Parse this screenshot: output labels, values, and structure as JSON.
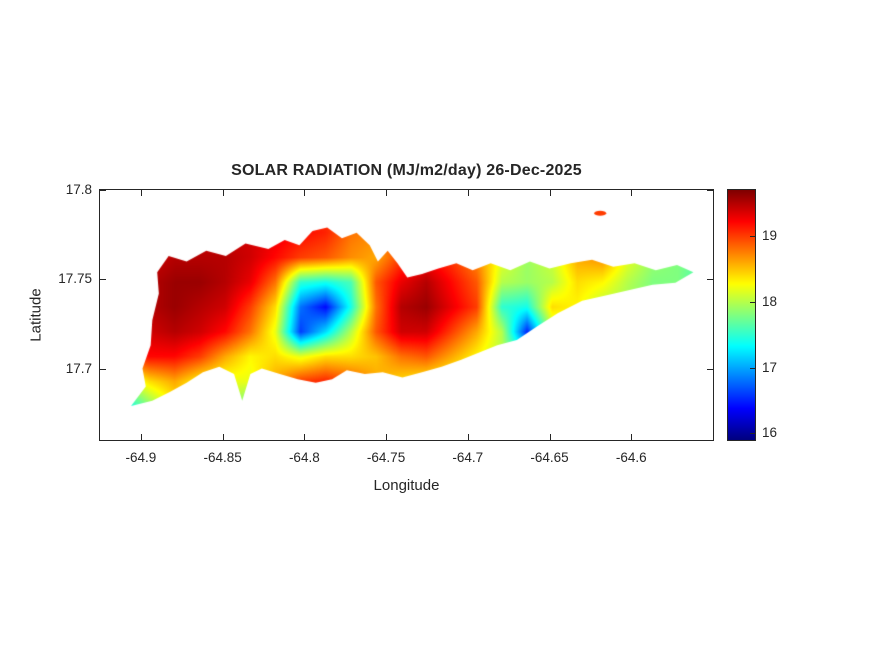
{
  "chart_data": {
    "type": "heatmap",
    "title": "SOLAR RADIATION (MJ/m2/day) 26-Dec-2025",
    "xlabel": "Longitude",
    "ylabel": "Latitude",
    "xlim": [
      -64.925,
      -64.55
    ],
    "ylim": [
      17.66,
      17.8
    ],
    "x_tick_labels": [
      "-64.9",
      "-64.85",
      "-64.8",
      "-64.75",
      "-64.7",
      "-64.65",
      "-64.6"
    ],
    "y_tick_labels": [
      "17.8",
      "17.75",
      "17.7"
    ],
    "grid_on": false,
    "colorbar": {
      "position": "right",
      "colormap": "jet",
      "clim": [
        15.9,
        19.7
      ],
      "ticks": [
        "19",
        "18",
        "17",
        "16"
      ]
    },
    "grid": {
      "lon_min": -64.91,
      "lon_max": -64.556,
      "lat_top": 17.79,
      "lat_bottom": 17.665,
      "cols": 24,
      "rows": 10,
      "values": [
        [
          19.0,
          19.2,
          19.3,
          19.3,
          19.3,
          19.3,
          19.2,
          19.1,
          19.0,
          18.8,
          18.7,
          18.8,
          18.9,
          18.8,
          18.6,
          18.4,
          18.2,
          18.3,
          18.5,
          18.7,
          18.3,
          18.0,
          17.9,
          17.8
        ],
        [
          19.1,
          19.3,
          19.4,
          19.4,
          19.4,
          19.4,
          19.3,
          19.2,
          19.1,
          18.8,
          18.7,
          18.9,
          19.1,
          18.9,
          18.6,
          18.3,
          18.1,
          18.2,
          18.6,
          18.8,
          18.2,
          18.0,
          17.9,
          17.8
        ],
        [
          19.2,
          19.4,
          19.5,
          19.5,
          19.5,
          19.4,
          19.2,
          19.0,
          18.9,
          18.7,
          18.6,
          19.0,
          19.2,
          19.0,
          18.7,
          18.2,
          17.9,
          18.1,
          18.6,
          18.7,
          18.2,
          17.9,
          17.8,
          17.7
        ],
        [
          19.3,
          19.5,
          19.6,
          19.6,
          19.5,
          19.3,
          18.8,
          17.5,
          17.4,
          17.6,
          18.9,
          19.3,
          19.5,
          19.2,
          18.9,
          18.0,
          17.9,
          18.0,
          18.4,
          18.3,
          18.0,
          17.8,
          17.8,
          17.5
        ],
        [
          19.3,
          19.5,
          19.6,
          19.5,
          19.4,
          19.0,
          18.4,
          16.8,
          16.4,
          17.4,
          18.8,
          19.5,
          19.6,
          19.3,
          19.0,
          17.5,
          17.4,
          18.4,
          18.3,
          18.0,
          17.9,
          17.8,
          17.9,
          17.9
        ],
        [
          19.2,
          19.4,
          19.5,
          19.4,
          19.2,
          18.8,
          18.2,
          16.6,
          17.2,
          18.0,
          18.9,
          19.4,
          19.4,
          19.0,
          18.6,
          18.0,
          16.5,
          18.0,
          18.2,
          17.9,
          17.8,
          17.9,
          18.0,
          18.0
        ],
        [
          19.0,
          19.2,
          19.2,
          19.0,
          18.6,
          18.3,
          18.4,
          18.2,
          18.4,
          18.4,
          18.5,
          18.8,
          18.9,
          18.6,
          18.3,
          18.0,
          17.6,
          18.1,
          18.0,
          17.8,
          17.9,
          18.0,
          18.1,
          18.1
        ],
        [
          18.0,
          18.4,
          18.6,
          18.3,
          18.2,
          18.2,
          18.6,
          19.0,
          19.1,
          18.9,
          18.6,
          18.4,
          18.3,
          18.2,
          18.1,
          18.0,
          17.9,
          18.0,
          17.9,
          17.9,
          18.0,
          18.1,
          18.1,
          18.1
        ],
        [
          17.3,
          17.8,
          18.3,
          18.2,
          18.1,
          17.6,
          18.5,
          18.8,
          18.9,
          18.8,
          18.5,
          18.2,
          18.1,
          18.0,
          18.0,
          18.0,
          17.9,
          17.9,
          17.9,
          17.9,
          18.0,
          18.0,
          18.0,
          18.0
        ],
        [
          17.2,
          17.7,
          18.1,
          18.1,
          18.0,
          17.8,
          18.3,
          18.5,
          18.6,
          18.5,
          18.3,
          18.1,
          18.0,
          18.0,
          17.9,
          17.9,
          17.9,
          17.9,
          17.9,
          17.9,
          17.9,
          17.9,
          17.9,
          17.9
        ]
      ]
    },
    "island_outline": [
      [
        -64.906,
        17.679
      ],
      [
        -64.897,
        17.69
      ],
      [
        -64.899,
        17.7
      ],
      [
        -64.894,
        17.713
      ],
      [
        -64.893,
        17.727
      ],
      [
        -64.889,
        17.742
      ],
      [
        -64.89,
        17.754
      ],
      [
        -64.883,
        17.763
      ],
      [
        -64.872,
        17.76
      ],
      [
        -64.86,
        17.766
      ],
      [
        -64.848,
        17.763
      ],
      [
        -64.836,
        17.77
      ],
      [
        -64.822,
        17.767
      ],
      [
        -64.812,
        17.772
      ],
      [
        -64.803,
        17.769
      ],
      [
        -64.795,
        17.777
      ],
      [
        -64.786,
        17.779
      ],
      [
        -64.777,
        17.773
      ],
      [
        -64.768,
        17.776
      ],
      [
        -64.76,
        17.769
      ],
      [
        -64.755,
        17.76
      ],
      [
        -64.749,
        17.766
      ],
      [
        -64.743,
        17.759
      ],
      [
        -64.737,
        17.751
      ],
      [
        -64.728,
        17.753
      ],
      [
        -64.718,
        17.756
      ],
      [
        -64.707,
        17.759
      ],
      [
        -64.697,
        17.755
      ],
      [
        -64.686,
        17.759
      ],
      [
        -64.674,
        17.755
      ],
      [
        -64.662,
        17.76
      ],
      [
        -64.65,
        17.756
      ],
      [
        -64.637,
        17.759
      ],
      [
        -64.624,
        17.761
      ],
      [
        -64.611,
        17.757
      ],
      [
        -64.598,
        17.759
      ],
      [
        -64.585,
        17.755
      ],
      [
        -64.572,
        17.758
      ],
      [
        -64.562,
        17.754
      ],
      [
        -64.573,
        17.748
      ],
      [
        -64.587,
        17.747
      ],
      [
        -64.601,
        17.744
      ],
      [
        -64.615,
        17.741
      ],
      [
        -64.63,
        17.738
      ],
      [
        -64.645,
        17.731
      ],
      [
        -64.657,
        17.724
      ],
      [
        -64.67,
        17.716
      ],
      [
        -64.682,
        17.713
      ],
      [
        -64.693,
        17.709
      ],
      [
        -64.704,
        17.705
      ],
      [
        -64.716,
        17.701
      ],
      [
        -64.728,
        17.698
      ],
      [
        -64.74,
        17.695
      ],
      [
        -64.752,
        17.698
      ],
      [
        -64.763,
        17.697
      ],
      [
        -64.774,
        17.699
      ],
      [
        -64.783,
        17.694
      ],
      [
        -64.793,
        17.692
      ],
      [
        -64.804,
        17.694
      ],
      [
        -64.815,
        17.697
      ],
      [
        -64.826,
        17.7
      ],
      [
        -64.833,
        17.697
      ],
      [
        -64.838,
        17.682
      ],
      [
        -64.843,
        17.697
      ],
      [
        -64.852,
        17.701
      ],
      [
        -64.862,
        17.698
      ],
      [
        -64.872,
        17.692
      ],
      [
        -64.882,
        17.687
      ],
      [
        -64.893,
        17.682
      ]
    ],
    "islet": {
      "lon": -64.619,
      "lat": 17.787,
      "value": 19.0
    }
  }
}
